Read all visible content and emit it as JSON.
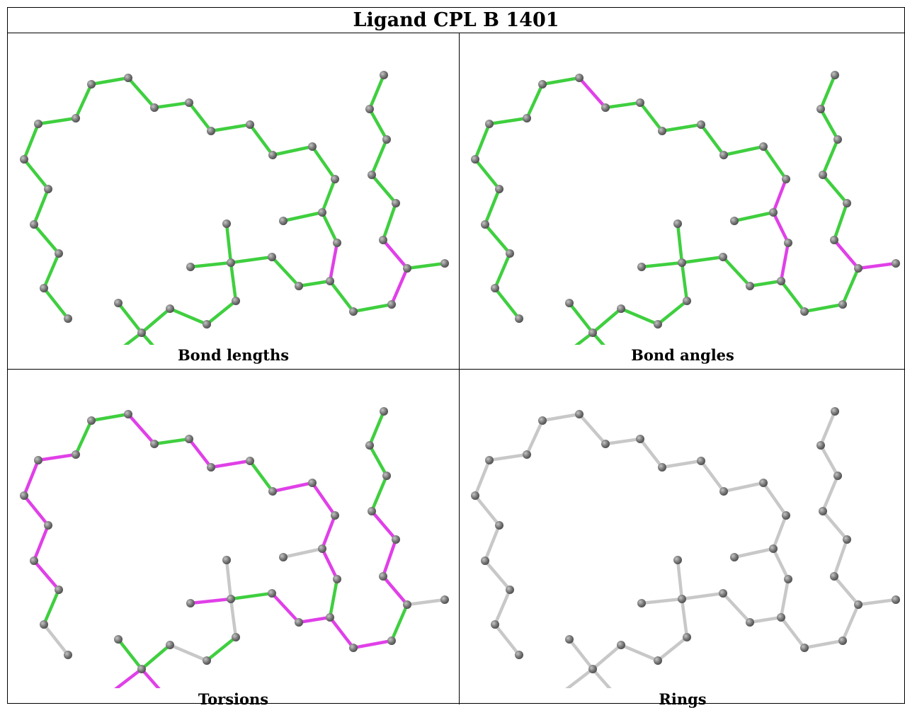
{
  "title": "Ligand CPL B 1401",
  "panels": [
    {
      "caption": "Bond lengths"
    },
    {
      "caption": "Bond angles"
    },
    {
      "caption": "Torsions"
    },
    {
      "caption": "Rings"
    }
  ],
  "colors": {
    "ok": "#3fcf3f",
    "outlier": "#e040e8",
    "neutral": "#c8c8c8",
    "atom": "#7a7a7a",
    "border": "#000000"
  }
}
